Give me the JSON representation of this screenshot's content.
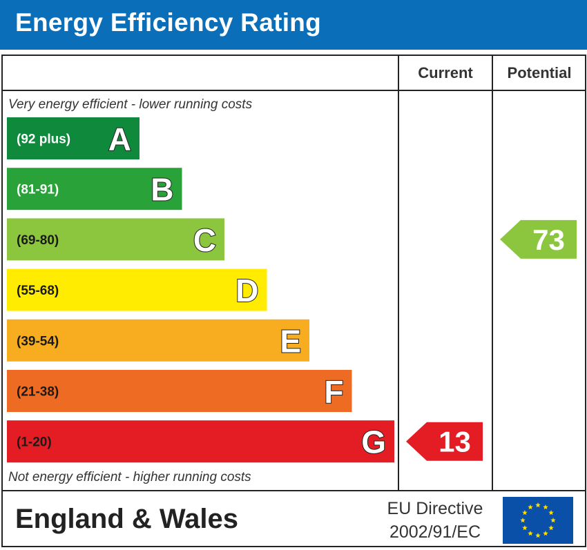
{
  "header": {
    "title": "Energy Efficiency Rating"
  },
  "columns": {
    "current": "Current",
    "potential": "Potential"
  },
  "notes": {
    "top": "Very energy efficient - lower running costs",
    "bottom": "Not energy efficient - higher running costs"
  },
  "chart_data": {
    "type": "bar",
    "title": "Energy Efficiency Rating",
    "bands": [
      {
        "letter": "A",
        "range": "(92 plus)",
        "min": 92,
        "max": 100,
        "color": "#0f8a3c"
      },
      {
        "letter": "B",
        "range": "(81-91)",
        "min": 81,
        "max": 91,
        "color": "#2aa23a"
      },
      {
        "letter": "C",
        "range": "(69-80)",
        "min": 69,
        "max": 80,
        "color": "#8cc63f"
      },
      {
        "letter": "D",
        "range": "(55-68)",
        "min": 55,
        "max": 68,
        "color": "#ffec00"
      },
      {
        "letter": "E",
        "range": "(39-54)",
        "min": 39,
        "max": 54,
        "color": "#f7ad1f"
      },
      {
        "letter": "F",
        "range": "(21-38)",
        "min": 21,
        "max": 38,
        "color": "#ee6b23"
      },
      {
        "letter": "G",
        "range": "(1-20)",
        "min": 1,
        "max": 20,
        "color": "#e31d23"
      }
    ],
    "current": {
      "value": 13,
      "band": "G",
      "color": "#e31d23"
    },
    "potential": {
      "value": 73,
      "band": "C",
      "color": "#8cc63f"
    }
  },
  "footer": {
    "region": "England & Wales",
    "directive_line1": "EU Directive",
    "directive_line2": "2002/91/EC",
    "flag_color": "#0a4fa8",
    "star_color": "#ffdd00"
  }
}
